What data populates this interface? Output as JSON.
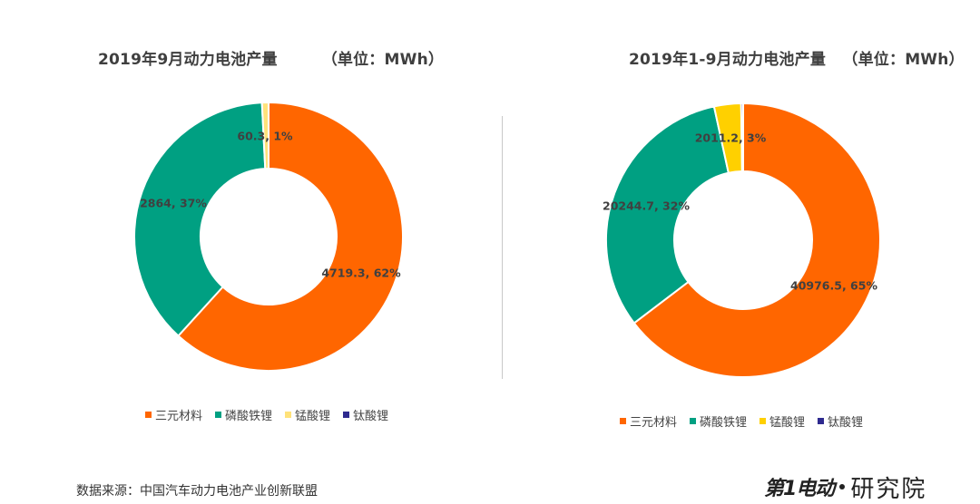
{
  "chart_data": [
    {
      "type": "pie",
      "donut": true,
      "title": "2019年9月动力电池产量",
      "unit": "（单位：MWh）",
      "categories": [
        "三元材料",
        "磷酸铁锂",
        "锰酸锂",
        "钛酸锂"
      ],
      "values": [
        4719.3,
        2864,
        60.3,
        0
      ],
      "data_labels": [
        "4719.3, 62%",
        "2864, 37%",
        "60.3, 1%",
        ""
      ],
      "colors": [
        "#FF6600",
        "#00A082",
        "#FFE27A",
        "#2E2A8F"
      ],
      "legend": "bottom"
    },
    {
      "type": "pie",
      "donut": true,
      "title": "2019年1-9月动力电池产量",
      "unit": "（单位：MWh）",
      "categories": [
        "三元材料",
        "磷酸铁锂",
        "锰酸锂",
        "钛酸锂"
      ],
      "values": [
        40976.5,
        20244.7,
        2011.2,
        150
      ],
      "data_labels": [
        "40976.5, 65%",
        "20244.7, 32%",
        "2011.2, 3%",
        ""
      ],
      "colors": [
        "#FF6600",
        "#00A082",
        "#FFD000",
        "#2E2A8F"
      ],
      "legend": "bottom"
    }
  ],
  "source": "数据来源：中国汽车动力电池产业创新联盟",
  "logo": {
    "mark": "第1电动",
    "text": "研究院"
  }
}
